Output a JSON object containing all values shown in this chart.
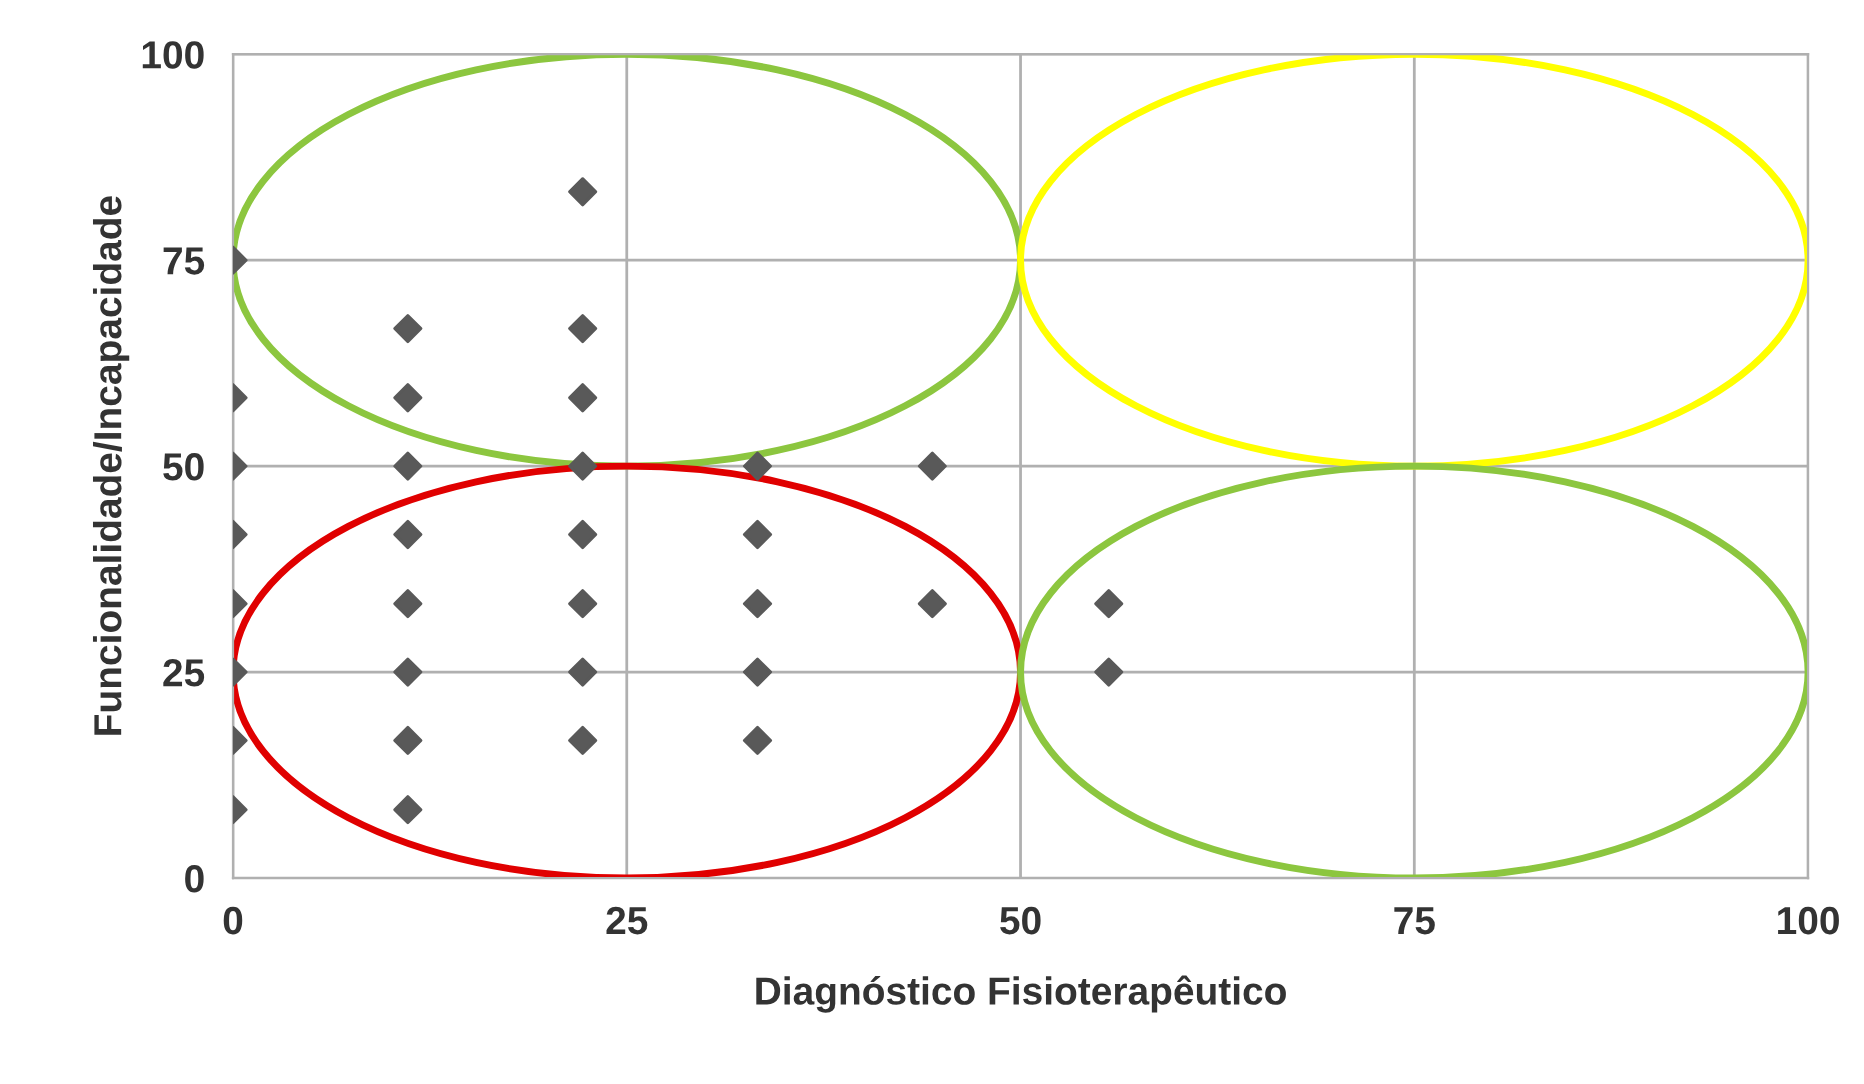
{
  "chart_data": {
    "type": "scatter",
    "xlabel": "Diagnóstico Fisioterapêutico",
    "ylabel": "Funcionalidade/Incapacidade",
    "x": [
      0,
      0,
      0,
      0,
      0,
      0,
      0,
      0,
      11.1,
      11.1,
      11.1,
      11.1,
      11.1,
      11.1,
      11.1,
      11.1,
      22.2,
      22.2,
      22.2,
      22.2,
      22.2,
      22.2,
      22.2,
      22.2,
      33.3,
      33.3,
      33.3,
      33.3,
      33.3,
      44.4,
      44.4,
      55.6,
      55.6
    ],
    "series": [
      {
        "color": "#595959",
        "values": [
          75,
          58.3,
          50,
          41.7,
          33.3,
          25,
          16.7,
          8.3,
          66.7,
          58.3,
          50,
          41.7,
          33.3,
          25,
          16.7,
          8.3,
          83.3,
          66.7,
          58.3,
          50,
          41.7,
          33.3,
          25,
          16.7,
          50,
          41.7,
          33.3,
          25,
          16.7,
          50,
          33.3,
          33.3,
          25
        ]
      }
    ],
    "xlim": [
      0,
      100
    ],
    "ylim": [
      0,
      100
    ],
    "xticks": [
      0,
      25,
      50,
      75,
      100
    ],
    "yticks": [
      0,
      25,
      50,
      75,
      100
    ],
    "grid": true,
    "marker": "diamond"
  }
}
